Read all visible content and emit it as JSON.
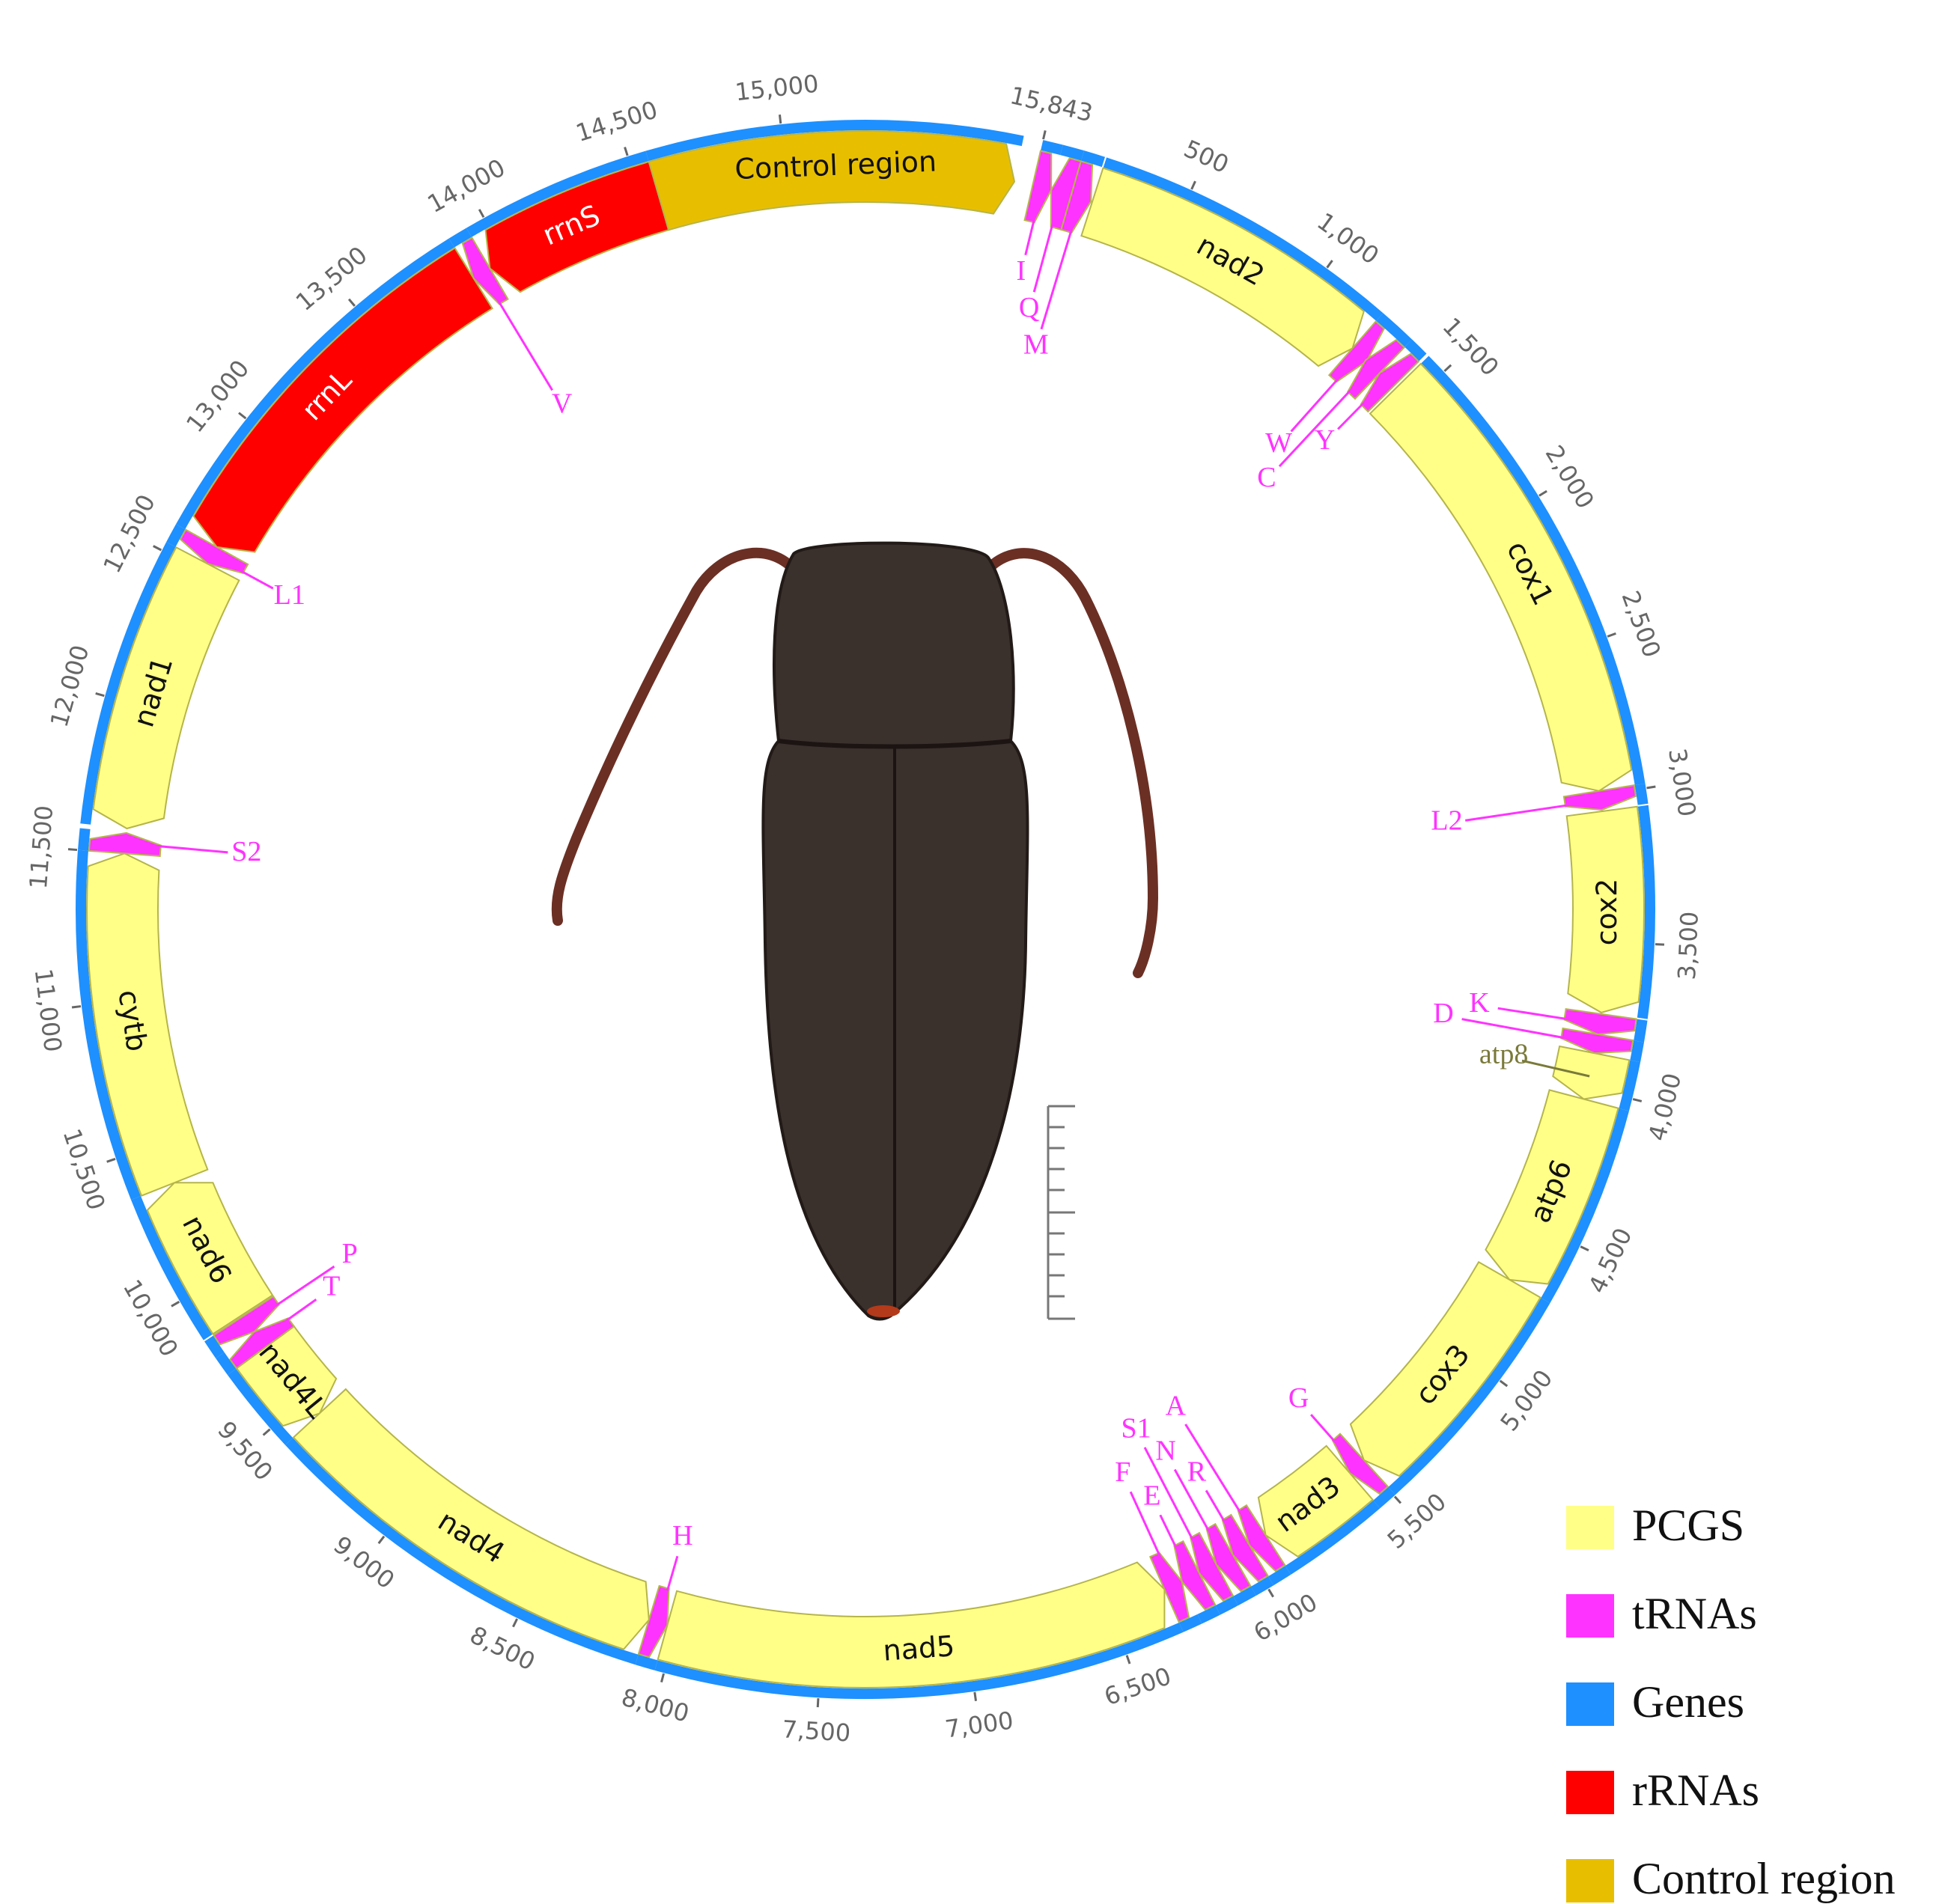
{
  "ticks": [
    500,
    {
      "value": 1000,
      "label": "1,000"
    },
    {
      "value": 1500,
      "label": "1,500"
    },
    {
      "value": 2000,
      "label": "2,000"
    },
    {
      "value": 2500,
      "label": "2,500"
    },
    {
      "value": 3000,
      "label": "3,000"
    },
    {
      "value": 3500,
      "label": "3,500"
    },
    {
      "value": 4000,
      "label": "4,000"
    },
    {
      "value": 4500,
      "label": "4,500"
    },
    {
      "value": 5000,
      "label": "5,000"
    },
    {
      "value": 5500,
      "label": "5,500"
    },
    {
      "value": 6000,
      "label": "6,000"
    },
    {
      "value": 6500,
      "label": "6,500"
    },
    {
      "value": 7000,
      "label": "7,000"
    },
    {
      "value": 7500,
      "label": "7,500"
    },
    {
      "value": 8000,
      "label": "8,000"
    },
    {
      "value": 8500,
      "label": "8,500"
    },
    {
      "value": 9000,
      "label": "9,000"
    },
    {
      "value": 9500,
      "label": "9,500"
    },
    {
      "value": 10000,
      "label": "10,000"
    },
    {
      "value": 10500,
      "label": "10,500"
    },
    {
      "value": 11000,
      "label": "11,000"
    },
    {
      "value": 11500,
      "label": "11,500"
    },
    {
      "value": 12000,
      "label": "12,000"
    },
    {
      "value": 12500,
      "label": "12,500"
    },
    {
      "value": 13000,
      "label": "13,000"
    },
    {
      "value": 13500,
      "label": "13,500"
    },
    {
      "value": 14000,
      "label": "14,000"
    },
    {
      "value": 14500,
      "label": "14,500"
    },
    {
      "value": 15000,
      "label": "15,000"
    },
    {
      "value": 15843,
      "label": "15,843"
    }
  ],
  "features": [
    {
      "label": "I",
      "start": 0,
      "end": 65,
      "direction": "forward",
      "color": "#ff33ff"
    },
    {
      "label": "Q",
      "start": 65,
      "end": 135,
      "direction": "reverse",
      "color": "#ff33ff"
    },
    {
      "label": "M",
      "start": 135,
      "end": 205,
      "direction": "forward",
      "color": "#ff33ff"
    },
    {
      "label": "nad2",
      "start": 210,
      "end": 1230,
      "direction": "forward",
      "color": "#ffff88"
    },
    {
      "label": "W",
      "start": 1230,
      "end": 1295,
      "direction": "forward",
      "color": "#ff33ff"
    },
    {
      "label": "C",
      "start": 1290,
      "end": 1355,
      "direction": "reverse",
      "color": "#ff33ff"
    },
    {
      "label": "Y",
      "start": 1355,
      "end": 1420,
      "direction": "reverse",
      "color": "#ff33ff"
    },
    {
      "label": "cox1",
      "start": 1430,
      "end": 2985,
      "direction": "forward",
      "color": "#ffff88"
    },
    {
      "label": "L2",
      "start": 2985,
      "end": 3050,
      "direction": "forward",
      "color": "#ff33ff"
    },
    {
      "label": "cox2",
      "start": 3055,
      "end": 3740,
      "direction": "forward",
      "color": "#ffff88"
    },
    {
      "label": "K",
      "start": 3745,
      "end": 3815,
      "direction": "forward",
      "color": "#ff33ff"
    },
    {
      "label": "D",
      "start": 3815,
      "end": 3880,
      "direction": "forward",
      "color": "#ff33ff"
    },
    {
      "label": "atp8",
      "start": 3880,
      "end": 4040,
      "direction": "forward",
      "color": "#ffff88",
      "label_color": "#7a7a3a"
    },
    {
      "label": "atp6",
      "start": 4040,
      "end": 4705,
      "direction": "forward",
      "color": "#ffff88"
    },
    {
      "label": "cox3",
      "start": 4705,
      "end": 5495,
      "direction": "forward",
      "color": "#ffff88"
    },
    {
      "label": "G",
      "start": 5495,
      "end": 5560,
      "direction": "forward",
      "color": "#ff33ff"
    },
    {
      "label": "nad3",
      "start": 5560,
      "end": 5915,
      "direction": "forward",
      "color": "#ffff88"
    },
    {
      "label": "A",
      "start": 5915,
      "end": 5980,
      "direction": "forward",
      "color": "#ff33ff"
    },
    {
      "label": "R",
      "start": 5980,
      "end": 6045,
      "direction": "forward",
      "color": "#ff33ff"
    },
    {
      "label": "N",
      "start": 6045,
      "end": 6110,
      "direction": "forward",
      "color": "#ff33ff"
    },
    {
      "label": "S1",
      "start": 6110,
      "end": 6175,
      "direction": "forward",
      "color": "#ff33ff"
    },
    {
      "label": "E",
      "start": 6175,
      "end": 6240,
      "direction": "forward",
      "color": "#ff33ff"
    },
    {
      "label": "F",
      "start": 6240,
      "end": 6305,
      "direction": "reverse",
      "color": "#ff33ff"
    },
    {
      "label": "nad5",
      "start": 6305,
      "end": 8030,
      "direction": "reverse",
      "color": "#ffff88"
    },
    {
      "label": "H",
      "start": 8030,
      "end": 8095,
      "direction": "reverse",
      "color": "#ff33ff"
    },
    {
      "label": "nad4",
      "start": 8095,
      "end": 9430,
      "direction": "reverse",
      "color": "#ffff88"
    },
    {
      "label": "nad4L",
      "start": 9430,
      "end": 9720,
      "direction": "reverse",
      "color": "#ffff88",
      "label_color": "#7a7a3a"
    },
    {
      "label": "T",
      "start": 9720,
      "end": 9785,
      "direction": "forward",
      "color": "#ff33ff"
    },
    {
      "label": "P",
      "start": 9785,
      "end": 9850,
      "direction": "reverse",
      "color": "#ff33ff"
    },
    {
      "label": "nad6",
      "start": 9855,
      "end": 10360,
      "direction": "forward",
      "color": "#ffff88"
    },
    {
      "label": "cytb",
      "start": 10360,
      "end": 11500,
      "direction": "forward",
      "color": "#ffff88"
    },
    {
      "label": "S2",
      "start": 11500,
      "end": 11570,
      "direction": "forward",
      "color": "#ff33ff"
    },
    {
      "label": "nad1",
      "start": 11585,
      "end": 12530,
      "direction": "reverse",
      "color": "#ffff88"
    },
    {
      "label": "L1",
      "start": 12530,
      "end": 12595,
      "direction": "reverse",
      "color": "#ff33ff"
    },
    {
      "label": "rrnL",
      "start": 12595,
      "end": 13870,
      "direction": "reverse",
      "color": "#ff0000",
      "text_color": "#ffffff"
    },
    {
      "label": "V",
      "start": 13870,
      "end": 13935,
      "direction": "reverse",
      "color": "#ff33ff"
    },
    {
      "label": "rrnS",
      "start": 13935,
      "end": 14560,
      "direction": "reverse",
      "color": "#ff0000",
      "text_color": "#ffffff"
    },
    {
      "label": "Control region",
      "start": 14560,
      "end": 15780,
      "direction": "forward",
      "color": "#e8bf00"
    }
  ],
  "legend": [
    {
      "label": "PCGS",
      "color": "#ffff88"
    },
    {
      "label": "tRNAs",
      "color": "#ff33ff"
    },
    {
      "label": "Genes",
      "color": "#1e90ff"
    },
    {
      "label": "rRNAs",
      "color": "#ff0000"
    },
    {
      "label": "Control region",
      "color": "#e8bf00"
    }
  ]
}
